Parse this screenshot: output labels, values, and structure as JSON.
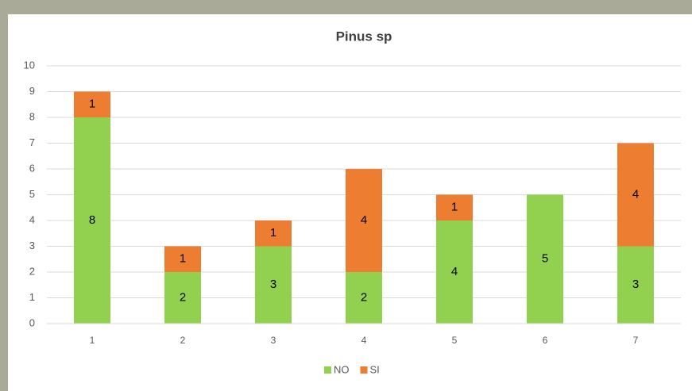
{
  "chart_data": {
    "type": "stacked_bar",
    "title": "Pinus sp",
    "categories": [
      "1",
      "2",
      "3",
      "4",
      "5",
      "6",
      "7"
    ],
    "series": [
      {
        "name": "NO",
        "color": "#92d050",
        "values": [
          8,
          2,
          3,
          2,
          4,
          5,
          3
        ]
      },
      {
        "name": "SI",
        "color": "#ed7d31",
        "values": [
          1,
          1,
          1,
          4,
          1,
          null,
          4
        ]
      }
    ],
    "ylim": [
      0,
      10
    ],
    "yticks": [
      0,
      1,
      2,
      3,
      4,
      5,
      6,
      7,
      8,
      9,
      10
    ],
    "grid": true,
    "legend": "bottom"
  }
}
